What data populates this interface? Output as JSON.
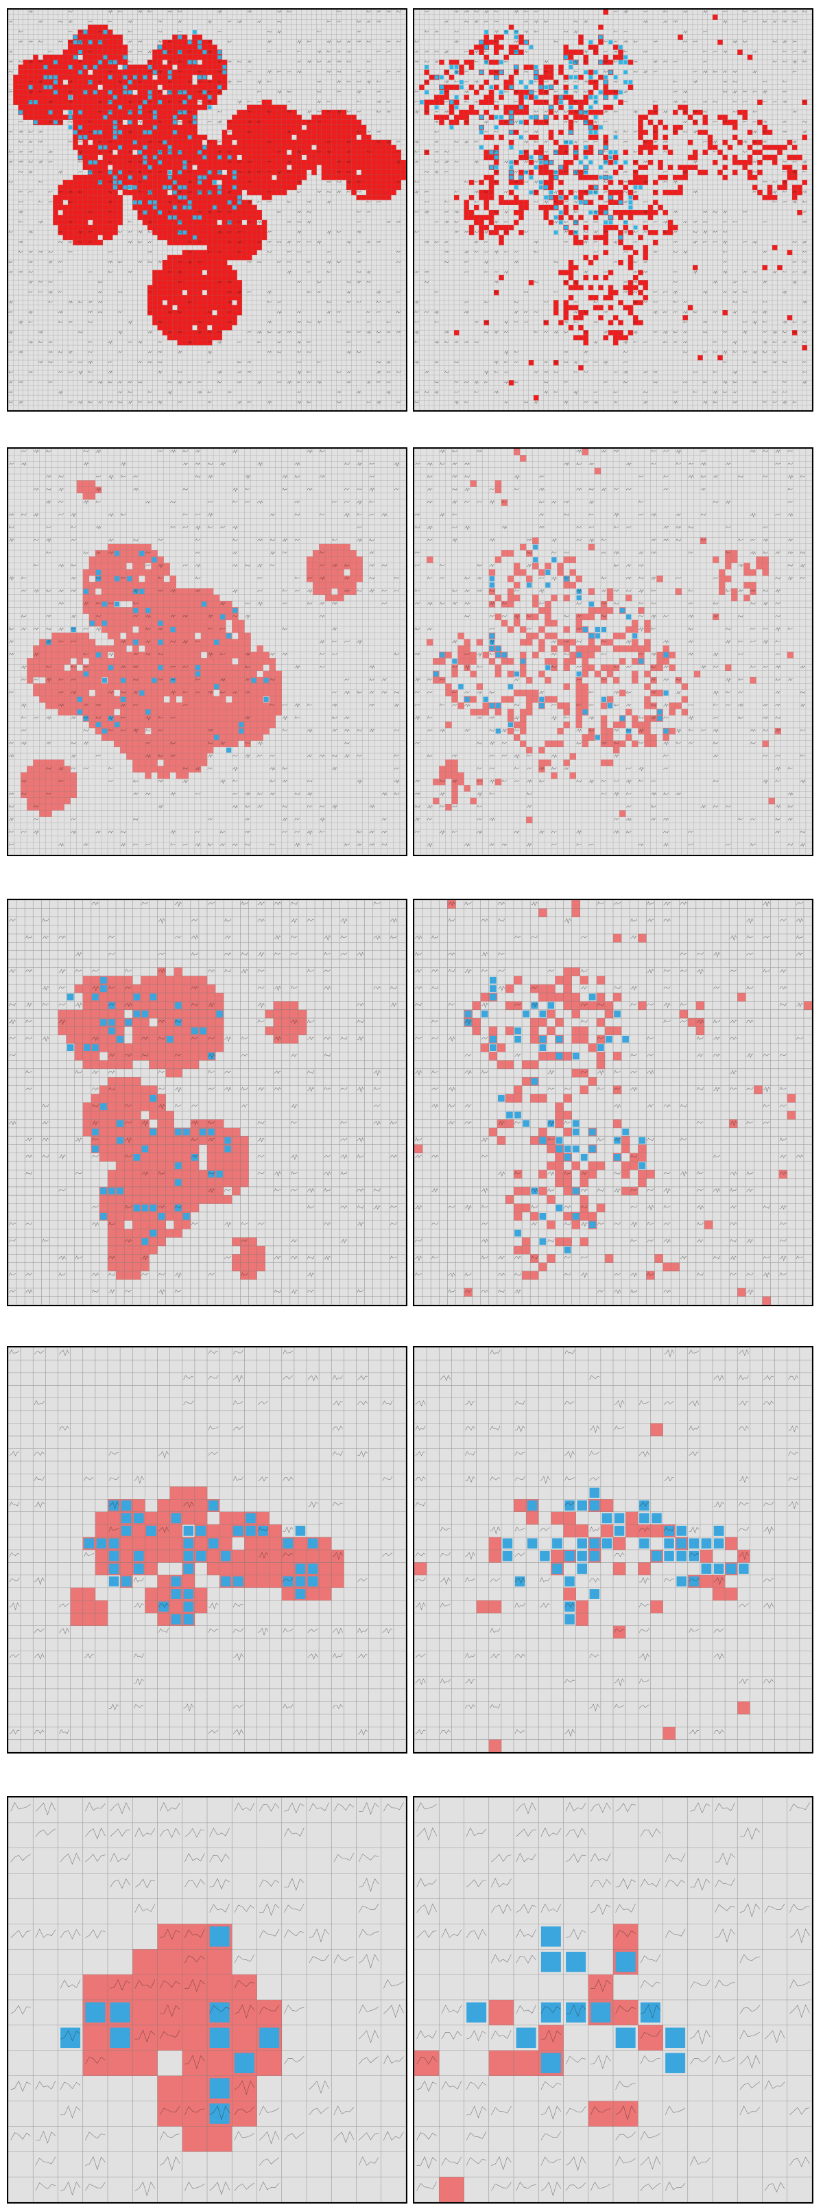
{
  "figure": {
    "rows": [
      {
        "grid_cells": 80,
        "hotspot_style": "saturated-red",
        "description_colors": {
          "hotspot": "#ee1c1c",
          "marker": "#2fb5e6"
        }
      },
      {
        "grid_cells": 64,
        "hotspot_style": "salmon"
      },
      {
        "grid_cells": 48,
        "hotspot_style": "salmon"
      },
      {
        "grid_cells": 32,
        "hotspot_style": "salmon"
      },
      {
        "grid_cells": 16,
        "hotspot_style": "salmon"
      }
    ],
    "colors": {
      "background": "#e1e1e1",
      "grid_line": "#7a7a7a",
      "hotspot_bright": "#ee1c1c",
      "hotspot_salmon": "#ec7575",
      "marker": "#3aa6dd",
      "marker_bright": "#2fb5e6",
      "spectrum_ink": "#222222"
    },
    "columns": [
      "map",
      "sparse"
    ]
  }
}
